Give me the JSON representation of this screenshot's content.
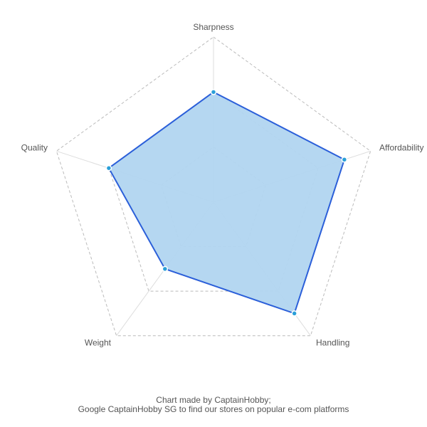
{
  "chart_data": {
    "type": "radar",
    "categories": [
      "Sharpness",
      "Affordability",
      "Handling",
      "Weight",
      "Quality"
    ],
    "values": [
      2,
      2.5,
      2.5,
      1.5,
      2
    ],
    "color": "#2b5fd9",
    "fill": "#b1d5f0",
    "marker_color": "#2a9fd8",
    "rlim": [
      0,
      3
    ],
    "rticks": [
      1,
      2,
      3
    ],
    "grid": true,
    "credit": [
      "Chart made by CaptainHobby;",
      "Google CaptainHobby SG to find our stores on popular e-com platforms"
    ]
  }
}
